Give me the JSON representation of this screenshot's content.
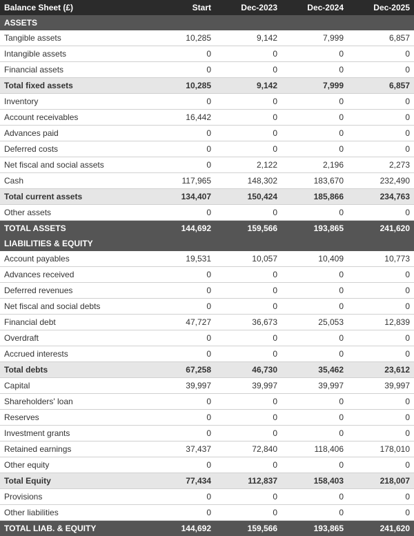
{
  "title": "Balance Sheet (£)",
  "columns": [
    "Start",
    "Dec-2023",
    "Dec-2024",
    "Dec-2025"
  ],
  "colors": {
    "header_bg": "#2b2b2b",
    "section_bg": "#555555",
    "subtotal_bg": "#e6e6e6",
    "grandtotal_bg": "#555555",
    "text_light": "#ffffff",
    "text_dark": "#333333",
    "row_border": "#d0d0d0"
  },
  "rows": [
    {
      "type": "section",
      "label": "ASSETS",
      "values": [
        "",
        "",
        "",
        ""
      ]
    },
    {
      "type": "normal",
      "label": "Tangible assets",
      "values": [
        "10,285",
        "9,142",
        "7,999",
        "6,857"
      ]
    },
    {
      "type": "normal",
      "label": "Intangible assets",
      "values": [
        "0",
        "0",
        "0",
        "0"
      ]
    },
    {
      "type": "normal",
      "label": "Financial assets",
      "values": [
        "0",
        "0",
        "0",
        "0"
      ]
    },
    {
      "type": "subtotal",
      "label": "Total fixed assets",
      "values": [
        "10,285",
        "9,142",
        "7,999",
        "6,857"
      ]
    },
    {
      "type": "normal",
      "label": "Inventory",
      "values": [
        "0",
        "0",
        "0",
        "0"
      ]
    },
    {
      "type": "normal",
      "label": "Account receivables",
      "values": [
        "16,442",
        "0",
        "0",
        "0"
      ]
    },
    {
      "type": "normal",
      "label": "Advances paid",
      "values": [
        "0",
        "0",
        "0",
        "0"
      ]
    },
    {
      "type": "normal",
      "label": "Deferred costs",
      "values": [
        "0",
        "0",
        "0",
        "0"
      ]
    },
    {
      "type": "normal",
      "label": "Net fiscal and social assets",
      "values": [
        "0",
        "2,122",
        "2,196",
        "2,273"
      ]
    },
    {
      "type": "normal",
      "label": "Cash",
      "values": [
        "117,965",
        "148,302",
        "183,670",
        "232,490"
      ]
    },
    {
      "type": "subtotal",
      "label": "Total current assets",
      "values": [
        "134,407",
        "150,424",
        "185,866",
        "234,763"
      ]
    },
    {
      "type": "normal",
      "label": "Other assets",
      "values": [
        "0",
        "0",
        "0",
        "0"
      ]
    },
    {
      "type": "grandtotal",
      "label": "TOTAL ASSETS",
      "values": [
        "144,692",
        "159,566",
        "193,865",
        "241,620"
      ]
    },
    {
      "type": "section",
      "label": "LIABILITIES & EQUITY",
      "values": [
        "",
        "",
        "",
        ""
      ]
    },
    {
      "type": "normal",
      "label": "Account payables",
      "values": [
        "19,531",
        "10,057",
        "10,409",
        "10,773"
      ]
    },
    {
      "type": "normal",
      "label": "Advances received",
      "values": [
        "0",
        "0",
        "0",
        "0"
      ]
    },
    {
      "type": "normal",
      "label": "Deferred revenues",
      "values": [
        "0",
        "0",
        "0",
        "0"
      ]
    },
    {
      "type": "normal",
      "label": "Net fiscal and social debts",
      "values": [
        "0",
        "0",
        "0",
        "0"
      ]
    },
    {
      "type": "normal",
      "label": "Financial debt",
      "values": [
        "47,727",
        "36,673",
        "25,053",
        "12,839"
      ]
    },
    {
      "type": "normal",
      "label": "Overdraft",
      "values": [
        "0",
        "0",
        "0",
        "0"
      ]
    },
    {
      "type": "normal",
      "label": "Accrued interests",
      "values": [
        "0",
        "0",
        "0",
        "0"
      ]
    },
    {
      "type": "subtotal",
      "label": "Total debts",
      "values": [
        "67,258",
        "46,730",
        "35,462",
        "23,612"
      ]
    },
    {
      "type": "normal",
      "label": "Capital",
      "values": [
        "39,997",
        "39,997",
        "39,997",
        "39,997"
      ]
    },
    {
      "type": "normal",
      "label": "Shareholders' loan",
      "values": [
        "0",
        "0",
        "0",
        "0"
      ]
    },
    {
      "type": "normal",
      "label": "Reserves",
      "values": [
        "0",
        "0",
        "0",
        "0"
      ]
    },
    {
      "type": "normal",
      "label": "Investment grants",
      "values": [
        "0",
        "0",
        "0",
        "0"
      ]
    },
    {
      "type": "normal",
      "label": "Retained earnings",
      "values": [
        "37,437",
        "72,840",
        "118,406",
        "178,010"
      ]
    },
    {
      "type": "normal",
      "label": "Other equity",
      "values": [
        "0",
        "0",
        "0",
        "0"
      ]
    },
    {
      "type": "subtotal",
      "label": "Total Equity",
      "values": [
        "77,434",
        "112,837",
        "158,403",
        "218,007"
      ]
    },
    {
      "type": "normal",
      "label": "Provisions",
      "values": [
        "0",
        "0",
        "0",
        "0"
      ]
    },
    {
      "type": "normal",
      "label": "Other liabilities",
      "values": [
        "0",
        "0",
        "0",
        "0"
      ]
    },
    {
      "type": "grandtotal",
      "label": "TOTAL LIAB. & EQUITY",
      "values": [
        "144,692",
        "159,566",
        "193,865",
        "241,620"
      ]
    }
  ]
}
